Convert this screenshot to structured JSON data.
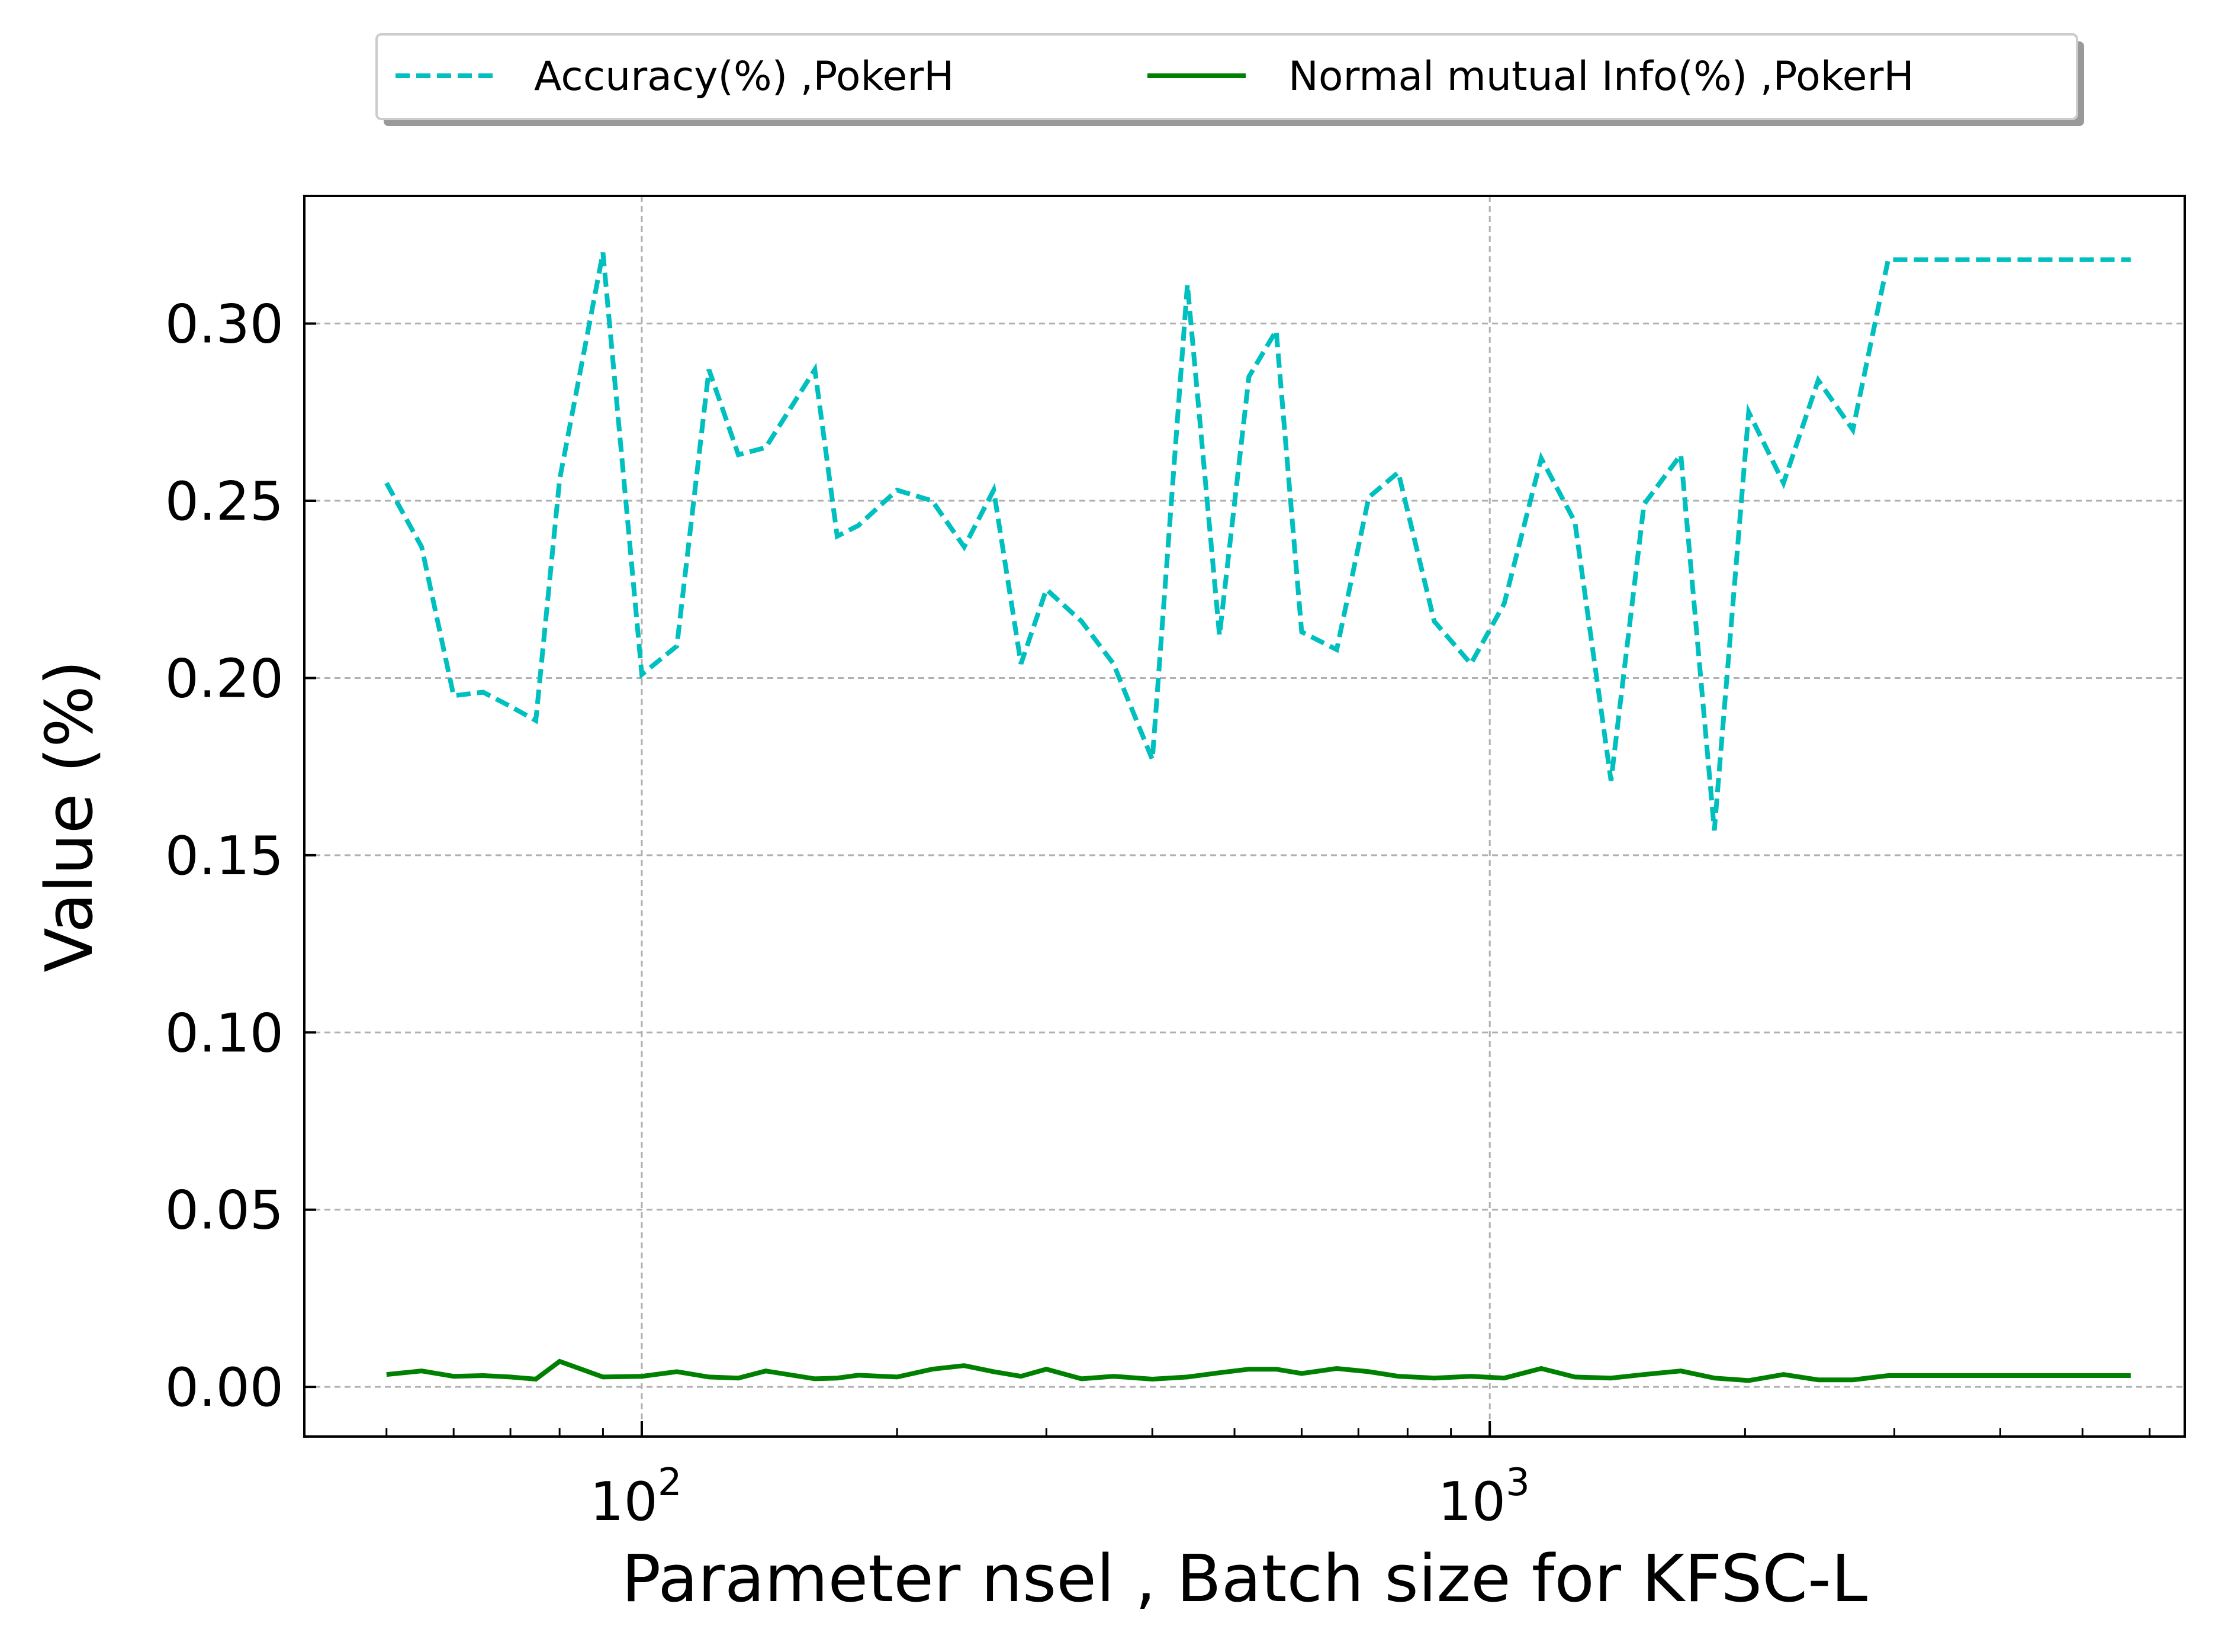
{
  "chart_data": {
    "type": "line",
    "title": "",
    "xlabel": "Parameter nsel , Batch size for KFSC-L",
    "ylabel": "Value (%)",
    "xscale": "log",
    "xlim": [
      40,
      6600
    ],
    "ylim": [
      -0.014,
      0.336
    ],
    "grid": true,
    "legend_position": "top-center",
    "x_ticks": [
      {
        "value": 100,
        "base": "10",
        "exp": "2"
      },
      {
        "value": 1000,
        "base": "10",
        "exp": "3"
      }
    ],
    "y_ticks": [
      {
        "value": 0.0,
        "label": "0.00"
      },
      {
        "value": 0.05,
        "label": "0.05"
      },
      {
        "value": 0.1,
        "label": "0.10"
      },
      {
        "value": 0.15,
        "label": "0.15"
      },
      {
        "value": 0.2,
        "label": "0.20"
      },
      {
        "value": 0.25,
        "label": "0.25"
      },
      {
        "value": 0.3,
        "label": "0.30"
      }
    ],
    "x": [
      50,
      55,
      60,
      65,
      70,
      75,
      80,
      90,
      100,
      110,
      120,
      130,
      140,
      160,
      170,
      180,
      200,
      220,
      240,
      260,
      280,
      300,
      330,
      360,
      400,
      440,
      480,
      520,
      560,
      600,
      660,
      720,
      780,
      860,
      950,
      1040,
      1150,
      1260,
      1390,
      1520,
      1680,
      1840,
      2020,
      2220,
      2440,
      2680,
      2950,
      3240,
      3560,
      3910,
      4300,
      4720,
      5200,
      5700
    ],
    "series": [
      {
        "name": "Accuracy(%) ,PokerH",
        "color": "#00bfbf",
        "style": "dashed",
        "values": [
          0.255,
          0.237,
          0.195,
          0.196,
          0.192,
          0.188,
          0.256,
          0.32,
          0.201,
          0.209,
          0.287,
          0.263,
          0.265,
          0.287,
          0.24,
          0.243,
          0.253,
          0.25,
          0.237,
          0.253,
          0.204,
          0.225,
          0.216,
          0.204,
          0.177,
          0.311,
          0.212,
          0.285,
          0.298,
          0.213,
          0.208,
          0.251,
          0.258,
          0.216,
          0.204,
          0.221,
          0.262,
          0.244,
          0.171,
          0.249,
          0.263,
          0.157,
          0.275,
          0.255,
          0.284,
          0.27,
          0.318,
          0.318,
          0.318,
          0.318,
          0.318,
          0.318,
          0.318,
          0.318
        ]
      },
      {
        "name": "Normal mutual Info(%) ,PokerH",
        "color": "#008000",
        "style": "solid",
        "values": [
          0.0035,
          0.0045,
          0.003,
          0.0032,
          0.0028,
          0.0022,
          0.0072,
          0.0028,
          0.003,
          0.0043,
          0.0028,
          0.0025,
          0.0045,
          0.0023,
          0.0025,
          0.0033,
          0.0028,
          0.005,
          0.006,
          0.0043,
          0.003,
          0.005,
          0.0023,
          0.003,
          0.0022,
          0.0028,
          0.004,
          0.005,
          0.005,
          0.0038,
          0.0052,
          0.0043,
          0.003,
          0.0025,
          0.003,
          0.0025,
          0.0052,
          0.0028,
          0.0025,
          0.0035,
          0.0045,
          0.0025,
          0.0018,
          0.0035,
          0.002,
          0.002,
          0.0032,
          0.0032,
          0.0032,
          0.0032,
          0.0032,
          0.0032,
          0.0032,
          0.0032
        ]
      }
    ]
  }
}
